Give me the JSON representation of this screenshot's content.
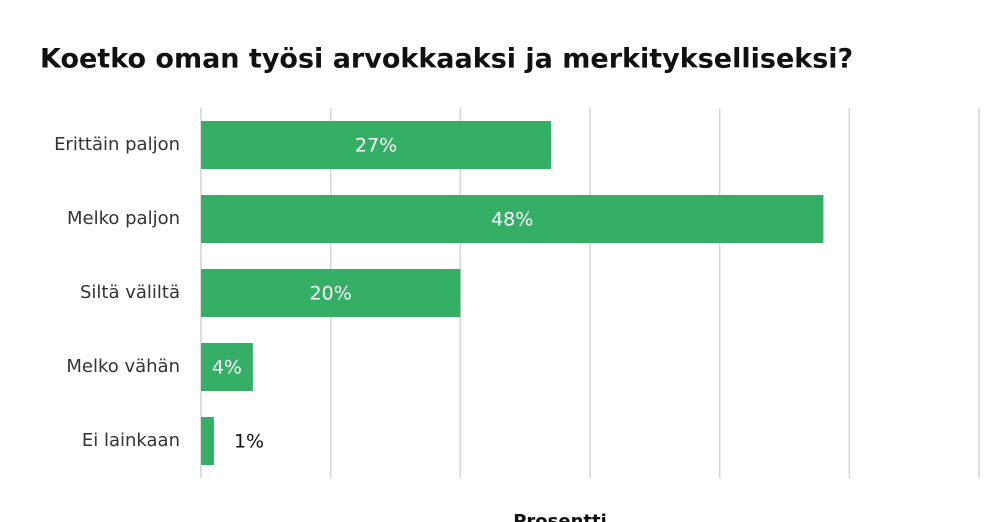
{
  "chart_data": {
    "type": "bar",
    "orientation": "horizontal",
    "title": "Koetko oman työsi arvokkaaksi ja merkitykselliseksi?",
    "x_label": "Prosentti",
    "categories": [
      "Erittäin paljon",
      "Melko paljon",
      "Siltä väliltä",
      "Melko vähän",
      "Ei lainkaan"
    ],
    "values": [
      27,
      48,
      20,
      4,
      1
    ],
    "value_labels": [
      "27%",
      "48%",
      "20%",
      "4%",
      "1%"
    ],
    "color": "#35ae66",
    "xlim": [
      0,
      60
    ],
    "xticks": [
      0,
      10,
      20,
      30,
      40,
      50,
      60
    ],
    "grid": true
  }
}
